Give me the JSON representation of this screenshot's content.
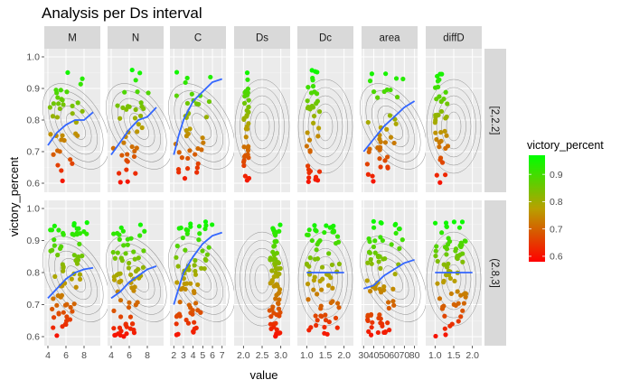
{
  "chart_data": {
    "type": "scatter",
    "title": "Analysis per Ds interval",
    "xlabel": "value",
    "ylabel": "victory_percent",
    "ylim": [
      0.6,
      1.0
    ],
    "yticks": [
      "0.6",
      "0.7",
      "0.8",
      "0.9",
      "1.0"
    ],
    "grid": true,
    "legend": {
      "title": "victory_percent",
      "position": "right",
      "range": [
        0.58,
        0.97
      ],
      "ticks": [
        "0.6",
        "0.7",
        "0.8",
        "0.9"
      ],
      "ticks_values": [
        0.6,
        0.7,
        0.8,
        0.9
      ],
      "colors": {
        "low": "#ff0000",
        "mid": "#b8a000",
        "high": "#00ff00"
      }
    },
    "colors": {
      "smooth_line": "#3366ff",
      "panel_bg": "#ebebeb",
      "strip_bg": "#d9d9d9",
      "contour": "#4d4d4d"
    },
    "columns": [
      {
        "name": "M",
        "xlim": [
          3.6,
          9.8
        ],
        "xticks": [
          "4",
          "6",
          "8"
        ],
        "xtick_values": [
          4,
          6,
          8
        ]
      },
      {
        "name": "N",
        "xlim": [
          3.6,
          9.8
        ],
        "xticks": [
          "4",
          "6",
          "8"
        ],
        "xtick_values": [
          4,
          6,
          8
        ]
      },
      {
        "name": "C",
        "xlim": [
          1.6,
          7.4
        ],
        "xticks": [
          "2",
          "3",
          "4",
          "5",
          "6",
          "7"
        ],
        "xtick_values": [
          2,
          3,
          4,
          5,
          6,
          7
        ]
      },
      {
        "name": "Ds",
        "xlim": [
          1.75,
          3.25
        ],
        "xticks": [
          "2.0",
          "2.5",
          "3.0"
        ],
        "xtick_values": [
          2.0,
          2.5,
          3.0
        ]
      },
      {
        "name": "Dc",
        "xlim": [
          0.75,
          2.25
        ],
        "xticks": [
          "1.0",
          "1.5",
          "2.0"
        ],
        "xtick_values": [
          1.0,
          1.5,
          2.0
        ]
      },
      {
        "name": "area",
        "xlim": [
          28,
          83
        ],
        "xticks": [
          "30",
          "40",
          "50",
          "60",
          "70",
          "80"
        ],
        "xtick_values": [
          30,
          40,
          50,
          60,
          70,
          80
        ]
      },
      {
        "name": "diffD",
        "xlim": [
          0.75,
          2.25
        ],
        "xticks": [
          "1.0",
          "1.5",
          "2.0"
        ],
        "xtick_values": [
          1.0,
          1.5,
          2.0
        ]
      }
    ],
    "rows": [
      {
        "name": "[2,2.2]",
        "smooth": {
          "M": [
            [
              4.0,
              0.72
            ],
            [
              5.0,
              0.76
            ],
            [
              6.0,
              0.785
            ],
            [
              7.0,
              0.8
            ],
            [
              8.0,
              0.8
            ],
            [
              9.0,
              0.825
            ]
          ],
          "N": [
            [
              4.0,
              0.69
            ],
            [
              5.0,
              0.73
            ],
            [
              6.0,
              0.77
            ],
            [
              7.0,
              0.8
            ],
            [
              8.0,
              0.81
            ],
            [
              9.0,
              0.84
            ]
          ],
          "C": [
            [
              2.0,
              0.69
            ],
            [
              2.5,
              0.75
            ],
            [
              3.0,
              0.8
            ],
            [
              4.0,
              0.86
            ],
            [
              5.0,
              0.89
            ],
            [
              6.0,
              0.92
            ],
            [
              7.0,
              0.93
            ]
          ],
          "area": [
            [
              30,
              0.7
            ],
            [
              40,
              0.74
            ],
            [
              50,
              0.78
            ],
            [
              60,
              0.81
            ],
            [
              70,
              0.84
            ],
            [
              80,
              0.86
            ]
          ]
        }
      },
      {
        "name": "(2.8,3]",
        "smooth": {
          "M": [
            [
              4.0,
              0.72
            ],
            [
              5.0,
              0.75
            ],
            [
              6.0,
              0.78
            ],
            [
              7.0,
              0.8
            ],
            [
              8.0,
              0.81
            ],
            [
              9.0,
              0.815
            ]
          ],
          "N": [
            [
              4.0,
              0.72
            ],
            [
              5.0,
              0.74
            ],
            [
              6.0,
              0.77
            ],
            [
              7.0,
              0.79
            ],
            [
              8.0,
              0.81
            ],
            [
              9.0,
              0.82
            ]
          ],
          "C": [
            [
              2.0,
              0.7
            ],
            [
              2.5,
              0.75
            ],
            [
              3.0,
              0.8
            ],
            [
              4.0,
              0.85
            ],
            [
              5.0,
              0.89
            ],
            [
              6.0,
              0.915
            ],
            [
              7.0,
              0.925
            ]
          ],
          "Dc": [
            [
              1.0,
              0.8
            ],
            [
              1.5,
              0.8
            ],
            [
              2.0,
              0.8
            ]
          ],
          "area": [
            [
              30,
              0.75
            ],
            [
              40,
              0.76
            ],
            [
              50,
              0.79
            ],
            [
              60,
              0.81
            ],
            [
              70,
              0.83
            ],
            [
              80,
              0.84
            ]
          ],
          "diffD": [
            [
              1.0,
              0.8
            ],
            [
              1.5,
              0.8
            ],
            [
              2.0,
              0.8
            ]
          ]
        }
      }
    ]
  }
}
